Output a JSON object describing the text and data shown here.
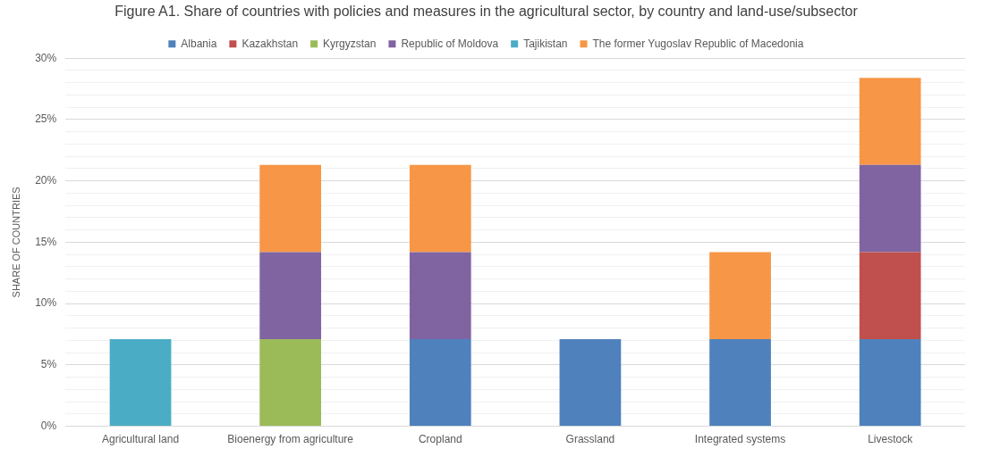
{
  "chart_data": {
    "type": "bar",
    "title": "Figure A1. Share of countries with policies and measures in the agricultural sector, by country and land-use/subsector",
    "ylabel": "SHARE OF COUNTRIES",
    "categories": [
      "Agricultural land",
      "Bioenergy from agriculture",
      "Cropland",
      "Grassland",
      "Integrated systems",
      "Livestock"
    ],
    "series": [
      {
        "name": "Albania",
        "color": "#4f81bd",
        "values": [
          null,
          null,
          7.1,
          7.1,
          7.1,
          7.1
        ]
      },
      {
        "name": "Kazakhstan",
        "color": "#c0504d",
        "values": [
          null,
          null,
          null,
          null,
          null,
          7.1
        ]
      },
      {
        "name": "Kyrgyzstan",
        "color": "#9bbb59",
        "values": [
          null,
          7.1,
          null,
          null,
          null,
          null
        ]
      },
      {
        "name": "Republic of Moldova",
        "color": "#8064a2",
        "values": [
          null,
          7.1,
          7.1,
          null,
          null,
          7.1
        ]
      },
      {
        "name": "Tajikistan",
        "color": "#4bacc6",
        "values": [
          7.1,
          null,
          null,
          null,
          null,
          null
        ]
      },
      {
        "name": "The former Yugoslav Republic of Macedonia",
        "color": "#f79646",
        "values": [
          null,
          7.1,
          7.1,
          null,
          7.1,
          7.1
        ]
      }
    ],
    "stacked": true,
    "ylim": [
      0,
      30
    ],
    "yticks": [
      {
        "value": 0,
        "label": "0%"
      },
      {
        "value": 1,
        "label": null
      },
      {
        "value": 2,
        "label": null
      },
      {
        "value": 3,
        "label": null
      },
      {
        "value": 4,
        "label": null
      },
      {
        "value": 5,
        "label": "5%"
      },
      {
        "value": 6,
        "label": null
      },
      {
        "value": 7,
        "label": null
      },
      {
        "value": 8,
        "label": null
      },
      {
        "value": 9,
        "label": null
      },
      {
        "value": 10,
        "label": "10%"
      },
      {
        "value": 11,
        "label": null
      },
      {
        "value": 12,
        "label": null
      },
      {
        "value": 13,
        "label": null
      },
      {
        "value": 14,
        "label": null
      },
      {
        "value": 15,
        "label": "15%"
      },
      {
        "value": 16,
        "label": null
      },
      {
        "value": 17,
        "label": null
      },
      {
        "value": 18,
        "label": null
      },
      {
        "value": 19,
        "label": null
      },
      {
        "value": 20,
        "label": "20%"
      },
      {
        "value": 21,
        "label": null
      },
      {
        "value": 22,
        "label": null
      },
      {
        "value": 23,
        "label": null
      },
      {
        "value": 24,
        "label": null
      },
      {
        "value": 25,
        "label": "25%"
      },
      {
        "value": 26,
        "label": null
      },
      {
        "value": 27,
        "label": null
      },
      {
        "value": 28,
        "label": null
      },
      {
        "value": 29,
        "label": null
      },
      {
        "value": 30,
        "label": "30%"
      }
    ],
    "grid": "y",
    "legend": "top"
  }
}
